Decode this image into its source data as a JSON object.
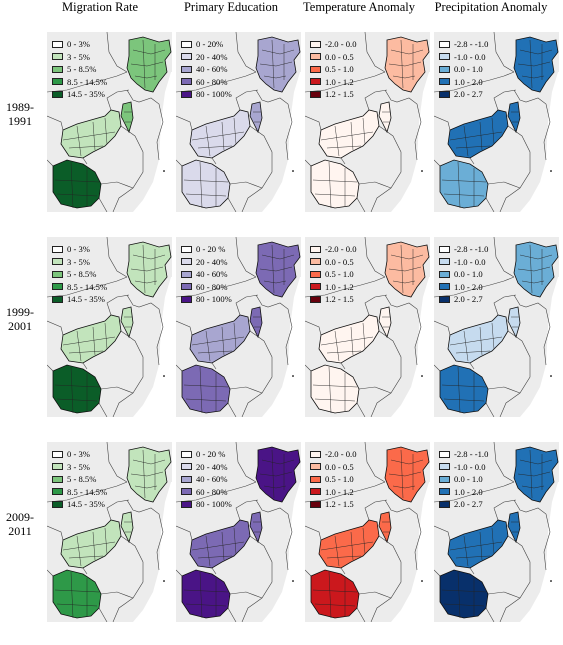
{
  "columns": [
    {
      "id": "migration",
      "title": "Migration Rate",
      "colors": [
        "#ffffff",
        "#c2e4bc",
        "#7cc57c",
        "#2e9948",
        "#0b5d28"
      ]
    },
    {
      "id": "education",
      "title": "Primary Education",
      "colors": [
        "#ffffff",
        "#dadaeb",
        "#a8a6d0",
        "#7c6ab4",
        "#4a1486"
      ]
    },
    {
      "id": "temperature",
      "title": "Temperature Anomaly",
      "colors": [
        "#fff5f0",
        "#fcbba1",
        "#fb6a4a",
        "#cb181d",
        "#67000d"
      ]
    },
    {
      "id": "precipitation",
      "title": "Precipitation Anomaly",
      "colors": [
        "#ffffff",
        "#c6dbef",
        "#6baed6",
        "#2171b5",
        "#08306b"
      ]
    }
  ],
  "rows": [
    {
      "label_line1": "1989-",
      "label_line2": "1991",
      "legends": [
        [
          "0 - 3%",
          "3 - 5%",
          "5 - 8.5%",
          "8.5 - 14.5%",
          "14.5 - 35%"
        ],
        [
          "0 - 20%",
          "20 - 40%",
          "40 - 60%",
          "60 - 80%",
          "80 - 100%"
        ],
        [
          "-2.0 - 0.0",
          "0.0 - 0.5",
          "0.5 - 1.0",
          "1.0 - 1.2",
          "1.2 - 1.5"
        ],
        [
          "-2.8 - -1.0",
          "-1.0 - 0.0",
          "0.0 - 1.0",
          "1.0 - 2.0",
          "2.0 - 2.7"
        ]
      ],
      "map_levels": [
        {
          "kenya": 2,
          "zambia": 1,
          "malawi": 2,
          "botswana": 4
        },
        {
          "kenya": 2,
          "zambia": 1,
          "malawi": 2,
          "botswana": 1
        },
        {
          "kenya": 1,
          "zambia": 0,
          "malawi": 0,
          "botswana": 0
        },
        {
          "kenya": 3,
          "zambia": 3,
          "malawi": 3,
          "botswana": 2
        }
      ]
    },
    {
      "label_line1": "1999-",
      "label_line2": "2001",
      "legends": [
        [
          "0 - 3%",
          "3 - 5%",
          "5 - 8.5%",
          "8.5 - 14.5%",
          "14.5 - 35%"
        ],
        [
          "0 - 20 %",
          "20 - 40%",
          "40 - 60%",
          "60 - 80%",
          "80 - 100%"
        ],
        [
          "-2.0 - 0.0",
          "0.0 - 0.5",
          "0.5 - 1.0",
          "1.0 - 1.2",
          "1.2 - 1.5"
        ],
        [
          "-2.8 - -1.0",
          "-1.0 - 0.0",
          "0.0 - 1.0",
          "1.0 - 2.0",
          "2.0 - 2.7"
        ]
      ],
      "map_levels": [
        {
          "kenya": 1,
          "zambia": 1,
          "malawi": 1,
          "botswana": 4
        },
        {
          "kenya": 3,
          "zambia": 2,
          "malawi": 3,
          "botswana": 3
        },
        {
          "kenya": 1,
          "zambia": 0,
          "malawi": 0,
          "botswana": 0
        },
        {
          "kenya": 2,
          "zambia": 1,
          "malawi": 1,
          "botswana": 3
        }
      ]
    },
    {
      "label_line1": "2009-",
      "label_line2": "2011",
      "legends": [
        [
          "0 - 3%",
          "3 - 5%",
          "5 - 8.5%",
          "8.5 - 14.5%",
          "14.5 - 35%"
        ],
        [
          "0 - 20 %",
          "20 - 40%",
          "40 - 60%",
          "60 - 80%",
          "80 - 100%"
        ],
        [
          "-2.0 - 0.0",
          "0.0 - 0.5",
          "0.5 - 1.0",
          "1.0 - 1.2",
          "1.2 - 1.5"
        ],
        [
          "-2.8 - -1.0",
          "-1.0 - 0.0",
          "0.0 - 1.0",
          "1.0 - 2.0",
          "2.0 - 2.7"
        ]
      ],
      "map_levels": [
        {
          "kenya": 1,
          "zambia": 1,
          "malawi": 1,
          "botswana": 3
        },
        {
          "kenya": 4,
          "zambia": 3,
          "malawi": 3,
          "botswana": 4
        },
        {
          "kenya": 2,
          "zambia": 2,
          "malawi": 2,
          "botswana": 3
        },
        {
          "kenya": 3,
          "zambia": 3,
          "malawi": 3,
          "botswana": 4
        }
      ]
    }
  ]
}
